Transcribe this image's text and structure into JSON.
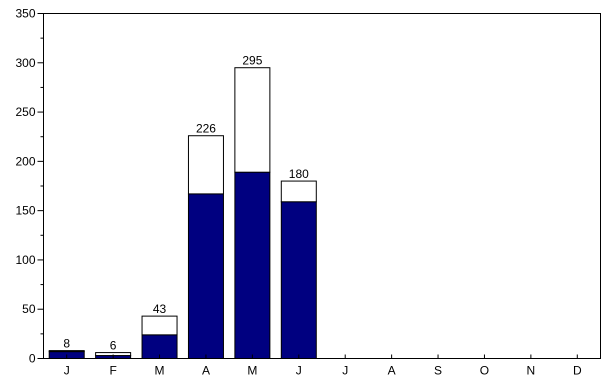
{
  "chart_data": {
    "type": "bar",
    "stacked": true,
    "categories": [
      "J",
      "F",
      "M",
      "A",
      "M",
      "J",
      "J",
      "A",
      "S",
      "O",
      "N",
      "D"
    ],
    "series": [
      {
        "values": [
          7,
          3,
          24,
          167,
          189,
          159,
          null,
          null,
          null,
          null,
          null,
          null
        ]
      },
      {
        "values": [
          1,
          3,
          19,
          59,
          106,
          21,
          null,
          null,
          null,
          null,
          null,
          null
        ]
      }
    ],
    "totals": [
      8,
      6,
      43,
      226,
      295,
      180,
      null,
      null,
      null,
      null,
      null,
      null
    ],
    "total_labels": [
      "8",
      "6",
      "43",
      "226",
      "295",
      "180",
      "",
      "",
      "",
      "",
      "",
      ""
    ],
    "ylim": [
      0,
      350
    ],
    "yticks": [
      0,
      50,
      100,
      150,
      200,
      250,
      300,
      350
    ],
    "ytick_labels": [
      "0",
      "50",
      "100",
      "150",
      "200",
      "250",
      "300",
      "350"
    ],
    "grid": false,
    "legend": "none",
    "colors": {
      "lower": "#000080",
      "upper": "#ffffff",
      "stroke": "#000000"
    }
  }
}
